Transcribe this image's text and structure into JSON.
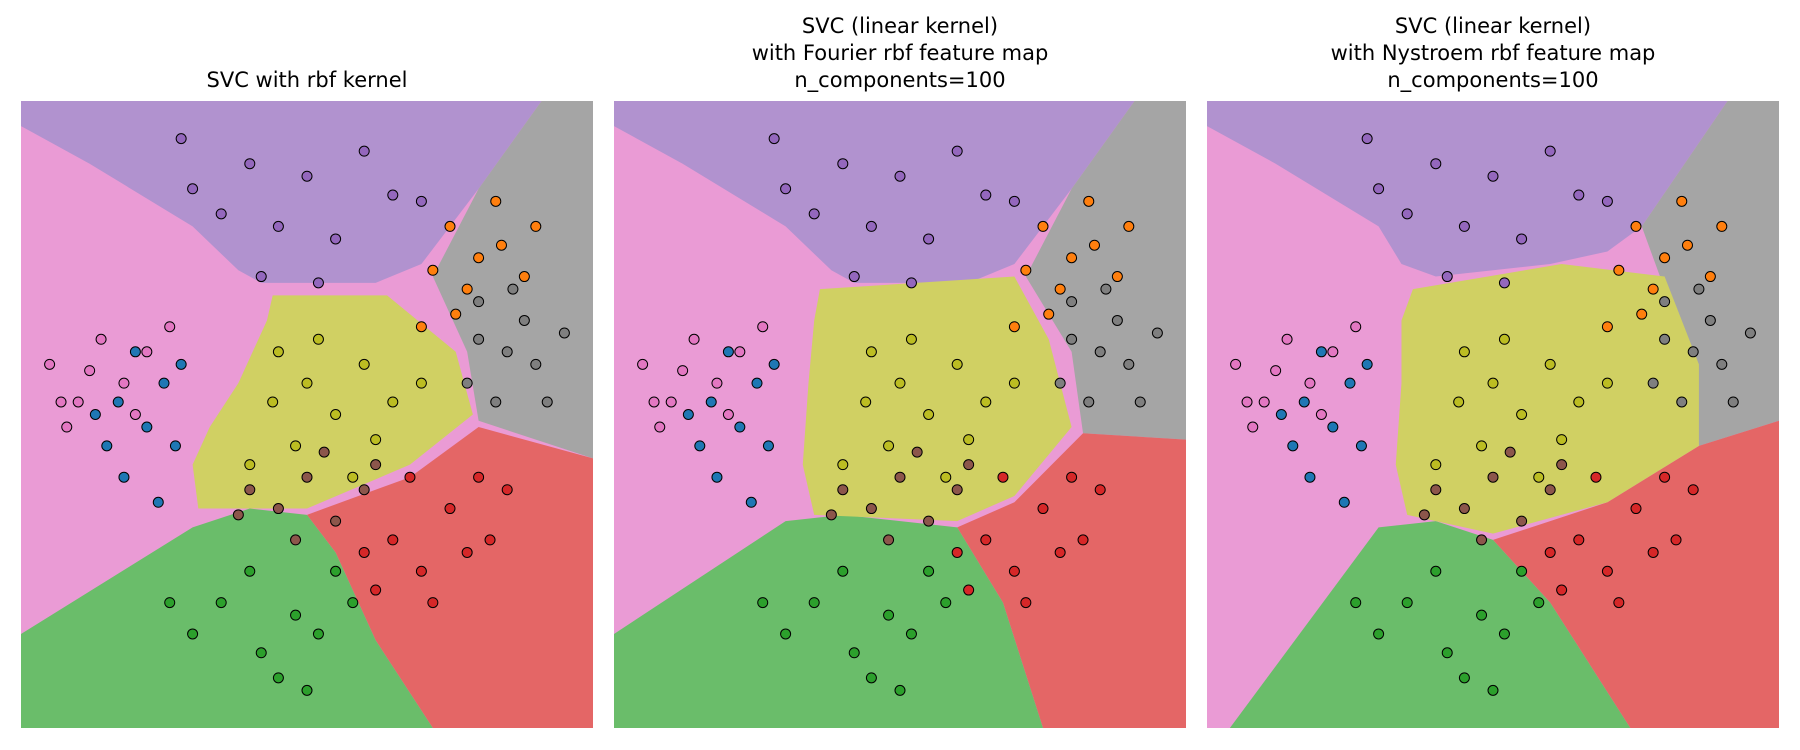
{
  "chart_data": [
    {
      "type": "scatter",
      "title": "SVC with rbf kernel",
      "xlim": [
        0,
        100
      ],
      "ylim": [
        0,
        100
      ],
      "series": [
        {
          "color": "#9467bd",
          "x": [
            28,
            40,
            50,
            60,
            35,
            45,
            55,
            65,
            42,
            52,
            70,
            30
          ],
          "values": [
            94,
            90,
            88,
            92,
            82,
            80,
            78,
            85,
            72,
            71,
            84,
            86
          ]
        },
        {
          "color": "#7f7f7f",
          "x": [
            80,
            85,
            90,
            78,
            88,
            92,
            83,
            86,
            95,
            80
          ],
          "values": [
            68,
            60,
            58,
            55,
            65,
            52,
            52,
            70,
            63,
            62
          ]
        },
        {
          "color": "#ff7f0e",
          "x": [
            75,
            80,
            78,
            84,
            72,
            88,
            83,
            76,
            90,
            70
          ],
          "values": [
            80,
            75,
            70,
            77,
            73,
            72,
            84,
            66,
            80,
            64
          ]
        },
        {
          "color": "#e377c2",
          "x": [
            5,
            10,
            14,
            8,
            18,
            22,
            12,
            26,
            7,
            20
          ],
          "values": [
            58,
            52,
            62,
            48,
            55,
            60,
            57,
            64,
            52,
            50
          ]
        },
        {
          "color": "#1f77b4",
          "x": [
            15,
            18,
            22,
            25,
            20,
            28,
            17,
            24,
            13,
            27
          ],
          "values": [
            45,
            40,
            48,
            55,
            60,
            58,
            52,
            36,
            50,
            45
          ]
        },
        {
          "color": "#bcbd22",
          "x": [
            45,
            50,
            55,
            60,
            48,
            65,
            40,
            58,
            52,
            70,
            44,
            62
          ],
          "values": [
            60,
            55,
            50,
            58,
            45,
            52,
            42,
            40,
            62,
            55,
            52,
            46
          ]
        },
        {
          "color": "#8c564b",
          "x": [
            40,
            45,
            50,
            55,
            60,
            48,
            38,
            53,
            62
          ],
          "values": [
            38,
            35,
            40,
            33,
            38,
            30,
            34,
            44,
            42
          ]
        },
        {
          "color": "#d62728",
          "x": [
            65,
            70,
            75,
            80,
            60,
            72,
            78,
            85,
            68,
            62,
            82
          ],
          "values": [
            30,
            25,
            35,
            40,
            28,
            20,
            28,
            38,
            40,
            22,
            30
          ]
        },
        {
          "color": "#2ca02c",
          "x": [
            35,
            42,
            48,
            52,
            45,
            55,
            30,
            40,
            50,
            58,
            26
          ],
          "values": [
            20,
            12,
            18,
            15,
            8,
            25,
            15,
            25,
            6,
            20,
            20
          ]
        }
      ]
    },
    {
      "type": "scatter",
      "title": "SVC (linear kernel)\nwith Fourier rbf feature map\nn_components=100",
      "xlim": [
        0,
        100
      ],
      "ylim": [
        0,
        100
      ],
      "series": [
        {
          "color": "#9467bd",
          "x": [
            28,
            40,
            50,
            60,
            35,
            45,
            55,
            65,
            42,
            52,
            70,
            30
          ],
          "values": [
            94,
            90,
            88,
            92,
            82,
            80,
            78,
            85,
            72,
            71,
            84,
            86
          ]
        },
        {
          "color": "#7f7f7f",
          "x": [
            80,
            85,
            90,
            78,
            88,
            92,
            83,
            86,
            95,
            80
          ],
          "values": [
            68,
            60,
            58,
            55,
            65,
            52,
            52,
            70,
            63,
            62
          ]
        },
        {
          "color": "#ff7f0e",
          "x": [
            75,
            80,
            78,
            84,
            72,
            88,
            83,
            76,
            90,
            70
          ],
          "values": [
            80,
            75,
            70,
            77,
            73,
            72,
            84,
            66,
            80,
            64
          ]
        },
        {
          "color": "#e377c2",
          "x": [
            5,
            10,
            14,
            8,
            18,
            22,
            12,
            26,
            7,
            20
          ],
          "values": [
            58,
            52,
            62,
            48,
            55,
            60,
            57,
            64,
            52,
            50
          ]
        },
        {
          "color": "#1f77b4",
          "x": [
            15,
            18,
            22,
            25,
            20,
            28,
            17,
            24,
            13,
            27
          ],
          "values": [
            45,
            40,
            48,
            55,
            60,
            58,
            52,
            36,
            50,
            45
          ]
        },
        {
          "color": "#bcbd22",
          "x": [
            45,
            50,
            55,
            60,
            48,
            65,
            40,
            58,
            52,
            70,
            44,
            62
          ],
          "values": [
            60,
            55,
            50,
            58,
            45,
            52,
            42,
            40,
            62,
            55,
            52,
            46
          ]
        },
        {
          "color": "#8c564b",
          "x": [
            40,
            45,
            50,
            55,
            60,
            48,
            38,
            53,
            62
          ],
          "values": [
            38,
            35,
            40,
            33,
            38,
            30,
            34,
            44,
            42
          ]
        },
        {
          "color": "#d62728",
          "x": [
            65,
            70,
            75,
            80,
            60,
            72,
            78,
            85,
            68,
            62,
            82
          ],
          "values": [
            30,
            25,
            35,
            40,
            28,
            20,
            28,
            38,
            40,
            22,
            30
          ]
        },
        {
          "color": "#2ca02c",
          "x": [
            35,
            42,
            48,
            52,
            45,
            55,
            30,
            40,
            50,
            58,
            26
          ],
          "values": [
            20,
            12,
            18,
            15,
            8,
            25,
            15,
            25,
            6,
            20,
            20
          ]
        }
      ]
    },
    {
      "type": "scatter",
      "title": "SVC (linear kernel)\nwith Nystroem rbf feature map\nn_components=100",
      "xlim": [
        0,
        100
      ],
      "ylim": [
        0,
        100
      ],
      "series": [
        {
          "color": "#9467bd",
          "x": [
            28,
            40,
            50,
            60,
            35,
            45,
            55,
            65,
            42,
            52,
            70,
            30
          ],
          "values": [
            94,
            90,
            88,
            92,
            82,
            80,
            78,
            85,
            72,
            71,
            84,
            86
          ]
        },
        {
          "color": "#7f7f7f",
          "x": [
            80,
            85,
            90,
            78,
            88,
            92,
            83,
            86,
            95,
            80
          ],
          "values": [
            68,
            60,
            58,
            55,
            65,
            52,
            52,
            70,
            63,
            62
          ]
        },
        {
          "color": "#ff7f0e",
          "x": [
            75,
            80,
            78,
            84,
            72,
            88,
            83,
            76,
            90,
            70
          ],
          "values": [
            80,
            75,
            70,
            77,
            73,
            72,
            84,
            66,
            80,
            64
          ]
        },
        {
          "color": "#e377c2",
          "x": [
            5,
            10,
            14,
            8,
            18,
            22,
            12,
            26,
            7,
            20
          ],
          "values": [
            58,
            52,
            62,
            48,
            55,
            60,
            57,
            64,
            52,
            50
          ]
        },
        {
          "color": "#1f77b4",
          "x": [
            15,
            18,
            22,
            25,
            20,
            28,
            17,
            24,
            13,
            27
          ],
          "values": [
            45,
            40,
            48,
            55,
            60,
            58,
            52,
            36,
            50,
            45
          ]
        },
        {
          "color": "#bcbd22",
          "x": [
            45,
            50,
            55,
            60,
            48,
            65,
            40,
            58,
            52,
            70,
            44,
            62
          ],
          "values": [
            60,
            55,
            50,
            58,
            45,
            52,
            42,
            40,
            62,
            55,
            52,
            46
          ]
        },
        {
          "color": "#8c564b",
          "x": [
            40,
            45,
            50,
            55,
            60,
            48,
            38,
            53,
            62
          ],
          "values": [
            38,
            35,
            40,
            33,
            38,
            30,
            34,
            44,
            42
          ]
        },
        {
          "color": "#d62728",
          "x": [
            65,
            70,
            75,
            80,
            60,
            72,
            78,
            85,
            68,
            62,
            82
          ],
          "values": [
            30,
            25,
            35,
            40,
            28,
            20,
            28,
            38,
            40,
            22,
            30
          ]
        },
        {
          "color": "#2ca02c",
          "x": [
            35,
            42,
            48,
            52,
            45,
            55,
            30,
            40,
            50,
            58,
            26
          ],
          "values": [
            20,
            12,
            18,
            15,
            8,
            25,
            15,
            25,
            6,
            20,
            20
          ]
        }
      ]
    }
  ]
}
